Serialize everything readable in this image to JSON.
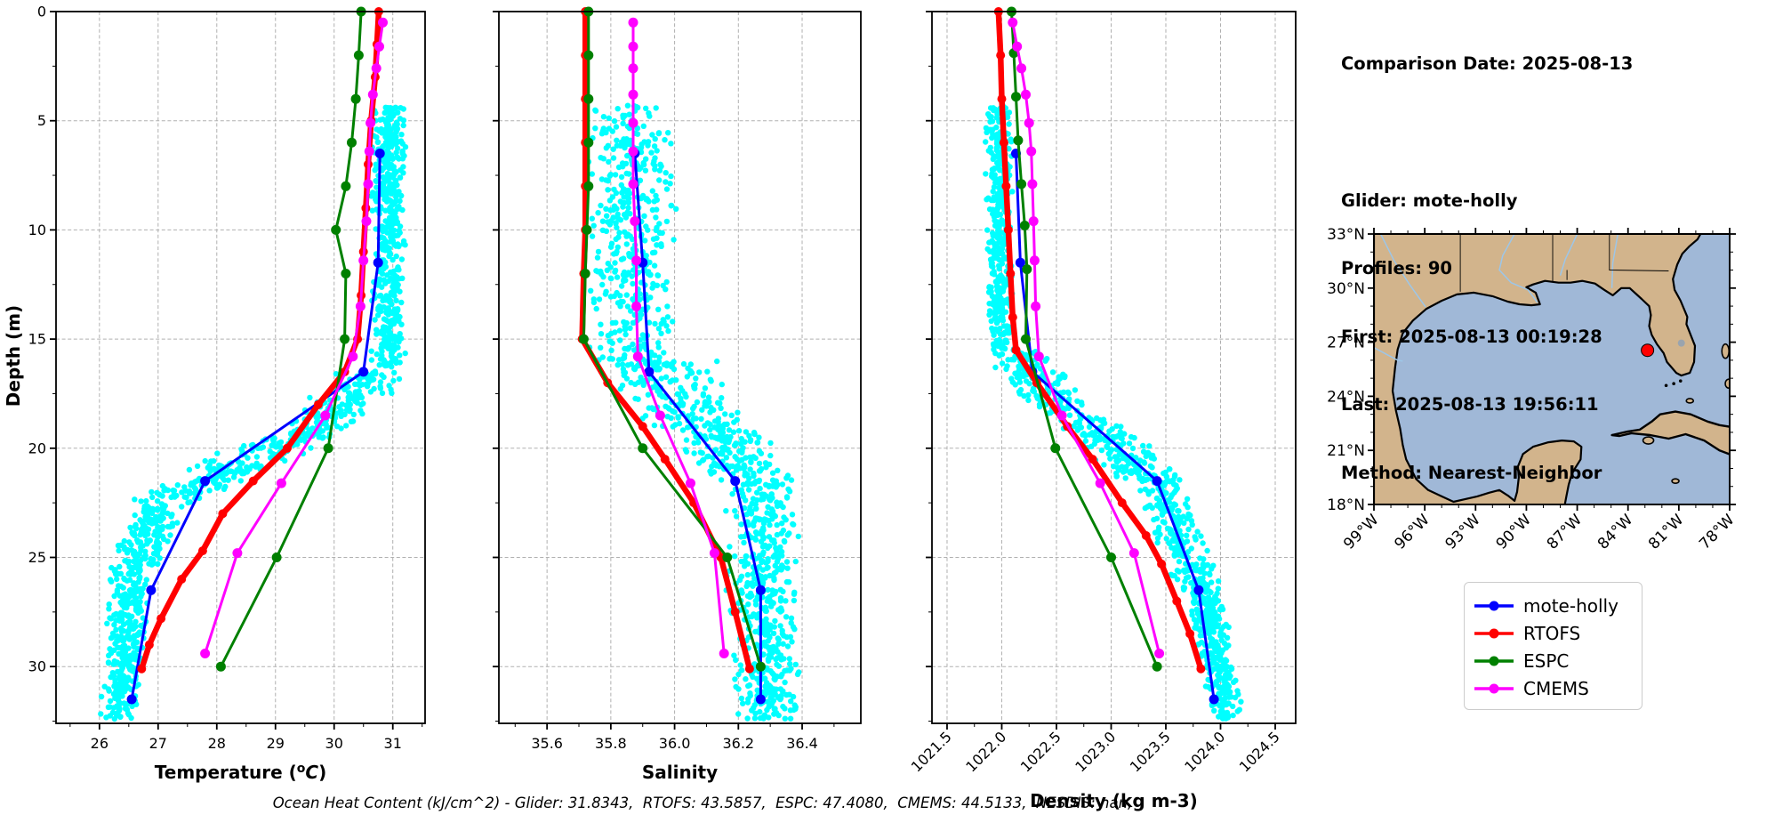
{
  "info_panel": {
    "comparison_date": "Comparison Date: 2025-08-13",
    "lines": [
      "Glider: mote-holly",
      "Profiles: 90",
      "First: 2025-08-13 00:19:28",
      "Last: 2025-08-13 19:56:11",
      "Method: Nearest-Neighbor"
    ]
  },
  "legend": {
    "items": [
      {
        "label": "mote-holly",
        "color": "#0000ff"
      },
      {
        "label": "RTOFS",
        "color": "#ff0000"
      },
      {
        "label": "ESPC",
        "color": "#008000"
      },
      {
        "label": "CMEMS",
        "color": "#ff00ff"
      }
    ]
  },
  "caption": "Ocean Heat Content (kJ/cm^2) - Glider: 31.8343,  RTOFS: 43.5857,  ESPC: 47.4080,  CMEMS: 44.5133,  NESDIS: nan,",
  "map": {
    "land_color": "#d2b48c",
    "ocean_color": "#a0b8d7",
    "lake_color": "#9aa4ae",
    "river_color": "#9dc6e8",
    "lat_ticks": [
      {
        "label": "33°N",
        "value": 33
      },
      {
        "label": "30°N",
        "value": 30
      },
      {
        "label": "27°N",
        "value": 27
      },
      {
        "label": "24°N",
        "value": 24
      },
      {
        "label": "21°N",
        "value": 21
      },
      {
        "label": "18°N",
        "value": 18
      }
    ],
    "lon_ticks": [
      {
        "label": "99°W",
        "value": -99
      },
      {
        "label": "96°W",
        "value": -96
      },
      {
        "label": "93°W",
        "value": -93
      },
      {
        "label": "90°W",
        "value": -90
      },
      {
        "label": "87°W",
        "value": -87
      },
      {
        "label": "84°W",
        "value": -84
      },
      {
        "label": "81°W",
        "value": -81
      },
      {
        "label": "78°W",
        "value": -78
      }
    ],
    "marker": {
      "lat": 26.55,
      "lon": -82.85,
      "color": "#ff0000"
    }
  },
  "chart_data": [
    {
      "id": "temperature",
      "type": "line",
      "xlabel": "Temperature (°C)",
      "ylabel": "Depth (m)",
      "xlim": [
        25.26,
        31.55
      ],
      "ylim": [
        0,
        32.6
      ],
      "xticks": [
        26,
        27,
        28,
        29,
        30,
        31
      ],
      "xtick_labels": [
        "26",
        "27",
        "28",
        "29",
        "30",
        "31"
      ],
      "x_tick_rotation": 0,
      "yticks": [
        0,
        5,
        10,
        15,
        20,
        25,
        30
      ],
      "ytick_labels": [
        "0",
        "5",
        "10",
        "15",
        "20",
        "25",
        "30"
      ],
      "grid": true,
      "cloud": {
        "name": "glider-profiles-scatter",
        "color": "#00ffff",
        "bands": [
          {
            "d0": 4.3,
            "d1": 16.5,
            "x0": 30.95,
            "x1": 30.92,
            "spread": 0.22,
            "n": 480
          },
          {
            "d0": 16.5,
            "d1": 19.5,
            "x0": 30.7,
            "x1": 29.5,
            "spread": 0.5,
            "n": 170
          },
          {
            "d0": 19.5,
            "d1": 22.5,
            "x0": 29.3,
            "x1": 27.1,
            "spread": 0.55,
            "n": 190
          },
          {
            "d0": 22.5,
            "d1": 25.5,
            "x0": 27.0,
            "x1": 26.6,
            "spread": 0.33,
            "n": 170
          },
          {
            "d0": 25.5,
            "d1": 32.4,
            "x0": 26.55,
            "x1": 26.35,
            "spread": 0.27,
            "n": 330
          }
        ]
      },
      "series": [
        {
          "name": "mote-holly",
          "color": "#0000ff",
          "lw": 3,
          "marker": 5.5,
          "points": [
            [
              30.78,
              6.5
            ],
            [
              30.75,
              11.5
            ],
            [
              30.5,
              16.5
            ],
            [
              27.8,
              21.5
            ],
            [
              26.88,
              26.5
            ],
            [
              26.55,
              31.5
            ]
          ]
        },
        {
          "name": "RTOFS",
          "color": "#ff0000",
          "lw": 6.5,
          "marker": 5,
          "points": [
            [
              30.76,
              0
            ],
            [
              30.73,
              1.5
            ],
            [
              30.7,
              3
            ],
            [
              30.63,
              5
            ],
            [
              30.58,
              7
            ],
            [
              30.54,
              9
            ],
            [
              30.5,
              11
            ],
            [
              30.46,
              13
            ],
            [
              30.4,
              15
            ],
            [
              30.18,
              16.5
            ],
            [
              29.73,
              18
            ],
            [
              29.2,
              20
            ],
            [
              28.62,
              21.5
            ],
            [
              28.1,
              23
            ],
            [
              27.76,
              24.7
            ],
            [
              27.4,
              26
            ],
            [
              27.05,
              27.8
            ],
            [
              26.85,
              29
            ],
            [
              26.72,
              30.1
            ]
          ]
        },
        {
          "name": "ESPC",
          "color": "#008000",
          "lw": 3,
          "marker": 5.5,
          "points": [
            [
              30.46,
              0
            ],
            [
              30.42,
              2
            ],
            [
              30.37,
              4
            ],
            [
              30.3,
              6
            ],
            [
              30.2,
              8
            ],
            [
              30.03,
              10
            ],
            [
              30.2,
              12
            ],
            [
              30.18,
              15
            ],
            [
              29.9,
              20
            ],
            [
              29.02,
              25
            ],
            [
              28.07,
              30
            ]
          ]
        },
        {
          "name": "CMEMS",
          "color": "#ff00ff",
          "lw": 3,
          "marker": 5.5,
          "points": [
            [
              30.83,
              0.5
            ],
            [
              30.77,
              1.6
            ],
            [
              30.72,
              2.6
            ],
            [
              30.66,
              3.8
            ],
            [
              30.62,
              5.1
            ],
            [
              30.6,
              6.4
            ],
            [
              30.58,
              7.9
            ],
            [
              30.55,
              9.6
            ],
            [
              30.5,
              11.4
            ],
            [
              30.45,
              13.5
            ],
            [
              30.32,
              15.8
            ],
            [
              29.85,
              18.5
            ],
            [
              29.1,
              21.6
            ],
            [
              28.35,
              24.8
            ],
            [
              27.8,
              29.4
            ]
          ]
        }
      ]
    },
    {
      "id": "salinity",
      "type": "line",
      "xlabel": "Salinity",
      "ylabel": "",
      "xlim": [
        35.449,
        36.584
      ],
      "ylim": [
        0,
        32.6
      ],
      "xticks": [
        35.6,
        35.8,
        36.0,
        36.2,
        36.4
      ],
      "xtick_labels": [
        "35.6",
        "35.8",
        "36.0",
        "36.2",
        "36.4"
      ],
      "x_tick_rotation": 0,
      "yticks": [
        0,
        5,
        10,
        15,
        20,
        25,
        30
      ],
      "ytick_labels": null,
      "grid": true,
      "cloud": {
        "name": "glider-profiles-scatter",
        "color": "#00ffff",
        "bands": [
          {
            "d0": 4.3,
            "d1": 16,
            "x0": 35.86,
            "x1": 35.87,
            "spread": 0.11,
            "n": 420
          },
          {
            "d0": 16,
            "d1": 19,
            "x0": 35.95,
            "x1": 36.08,
            "spread": 0.14,
            "n": 170
          },
          {
            "d0": 19,
            "d1": 21.5,
            "x0": 36.12,
            "x1": 36.24,
            "spread": 0.11,
            "n": 150
          },
          {
            "d0": 21.5,
            "d1": 32.4,
            "x0": 36.27,
            "x1": 36.29,
            "spread": 0.085,
            "n": 500
          }
        ]
      },
      "series": [
        {
          "name": "mote-holly",
          "color": "#0000ff",
          "lw": 3,
          "marker": 5.5,
          "points": [
            [
              35.875,
              6.5
            ],
            [
              35.9,
              11.5
            ],
            [
              35.92,
              16.5
            ],
            [
              36.19,
              21.5
            ],
            [
              36.27,
              26.5
            ],
            [
              36.27,
              31.5
            ]
          ]
        },
        {
          "name": "RTOFS",
          "color": "#ff0000",
          "lw": 6.5,
          "marker": 5,
          "points": [
            [
              35.72,
              0
            ],
            [
              35.72,
              2
            ],
            [
              35.72,
              4
            ],
            [
              35.72,
              6
            ],
            [
              35.72,
              8
            ],
            [
              35.72,
              10
            ],
            [
              35.715,
              12
            ],
            [
              35.71,
              15
            ],
            [
              35.79,
              17
            ],
            [
              35.9,
              19
            ],
            [
              35.97,
              20.5
            ],
            [
              36.06,
              22.5
            ],
            [
              36.145,
              25
            ],
            [
              36.19,
              27.5
            ],
            [
              36.235,
              30.1
            ]
          ]
        },
        {
          "name": "ESPC",
          "color": "#008000",
          "lw": 3,
          "marker": 5.5,
          "points": [
            [
              35.73,
              0
            ],
            [
              35.73,
              2
            ],
            [
              35.73,
              4
            ],
            [
              35.73,
              6
            ],
            [
              35.73,
              8
            ],
            [
              35.725,
              10
            ],
            [
              35.72,
              12
            ],
            [
              35.715,
              15
            ],
            [
              35.9,
              20
            ],
            [
              36.165,
              25
            ],
            [
              36.27,
              30
            ]
          ]
        },
        {
          "name": "CMEMS",
          "color": "#ff00ff",
          "lw": 3,
          "marker": 5.5,
          "points": [
            [
              35.87,
              0.5
            ],
            [
              35.87,
              1.6
            ],
            [
              35.87,
              2.6
            ],
            [
              35.87,
              3.8
            ],
            [
              35.87,
              5.1
            ],
            [
              35.87,
              6.4
            ],
            [
              35.87,
              7.9
            ],
            [
              35.875,
              9.6
            ],
            [
              35.88,
              11.4
            ],
            [
              35.88,
              13.5
            ],
            [
              35.885,
              15.8
            ],
            [
              35.955,
              18.5
            ],
            [
              36.05,
              21.6
            ],
            [
              36.125,
              24.8
            ],
            [
              36.155,
              29.4
            ]
          ]
        }
      ]
    },
    {
      "id": "density",
      "type": "line",
      "xlabel": "Density (kg m-3)",
      "ylabel": "",
      "xlim": [
        1021.362,
        1024.687
      ],
      "ylim": [
        0,
        32.6
      ],
      "xticks": [
        1021.5,
        1022.0,
        1022.5,
        1023.0,
        1023.5,
        1024.0,
        1024.5
      ],
      "xtick_labels": [
        "1021.5",
        "1022.0",
        "1022.5",
        "1023.0",
        "1023.5",
        "1024.0",
        "1024.5"
      ],
      "x_tick_rotation": 45,
      "yticks": [
        0,
        5,
        10,
        15,
        20,
        25,
        30
      ],
      "ytick_labels": null,
      "grid": true,
      "cloud": {
        "name": "glider-profiles-scatter",
        "color": "#00ffff",
        "bands": [
          {
            "d0": 4.3,
            "d1": 15.5,
            "x0": 1021.96,
            "x1": 1022.0,
            "spread": 0.09,
            "n": 400
          },
          {
            "d0": 15.5,
            "d1": 18.5,
            "x0": 1022.1,
            "x1": 1022.6,
            "spread": 0.22,
            "n": 150
          },
          {
            "d0": 18.5,
            "d1": 21.5,
            "x0": 1022.75,
            "x1": 1023.35,
            "spread": 0.25,
            "n": 160
          },
          {
            "d0": 21.5,
            "d1": 26.5,
            "x0": 1023.45,
            "x1": 1023.8,
            "spread": 0.17,
            "n": 220
          },
          {
            "d0": 26.5,
            "d1": 32.4,
            "x0": 1023.85,
            "x1": 1024.05,
            "spread": 0.13,
            "n": 300
          }
        ]
      },
      "series": [
        {
          "name": "mote-holly",
          "color": "#0000ff",
          "lw": 3,
          "marker": 5.5,
          "points": [
            [
              1022.13,
              6.5
            ],
            [
              1022.17,
              11.5
            ],
            [
              1022.28,
              16.5
            ],
            [
              1023.42,
              21.5
            ],
            [
              1023.8,
              26.5
            ],
            [
              1023.94,
              31.5
            ]
          ]
        },
        {
          "name": "RTOFS",
          "color": "#ff0000",
          "lw": 6.5,
          "marker": 5,
          "points": [
            [
              1021.97,
              0
            ],
            [
              1021.99,
              2
            ],
            [
              1022.0,
              4
            ],
            [
              1022.02,
              6
            ],
            [
              1022.04,
              8
            ],
            [
              1022.06,
              10
            ],
            [
              1022.08,
              12
            ],
            [
              1022.1,
              14
            ],
            [
              1022.13,
              15.5
            ],
            [
              1022.32,
              17
            ],
            [
              1022.6,
              19
            ],
            [
              1022.83,
              20.5
            ],
            [
              1023.1,
              22.5
            ],
            [
              1023.32,
              24
            ],
            [
              1023.46,
              25.3
            ],
            [
              1023.6,
              27
            ],
            [
              1023.72,
              28.5
            ],
            [
              1023.82,
              30.1
            ]
          ]
        },
        {
          "name": "ESPC",
          "color": "#008000",
          "lw": 3,
          "marker": 5.5,
          "points": [
            [
              1022.09,
              0
            ],
            [
              1022.11,
              1.9
            ],
            [
              1022.13,
              3.9
            ],
            [
              1022.15,
              5.9
            ],
            [
              1022.18,
              7.9
            ],
            [
              1022.21,
              9.8
            ],
            [
              1022.23,
              11.8
            ],
            [
              1022.22,
              15
            ],
            [
              1022.49,
              20
            ],
            [
              1023.0,
              25
            ],
            [
              1023.42,
              30
            ]
          ]
        },
        {
          "name": "CMEMS",
          "color": "#ff00ff",
          "lw": 3,
          "marker": 5.5,
          "points": [
            [
              1022.1,
              0.5
            ],
            [
              1022.14,
              1.6
            ],
            [
              1022.18,
              2.6
            ],
            [
              1022.22,
              3.8
            ],
            [
              1022.25,
              5.1
            ],
            [
              1022.27,
              6.4
            ],
            [
              1022.28,
              7.9
            ],
            [
              1022.29,
              9.6
            ],
            [
              1022.3,
              11.4
            ],
            [
              1022.31,
              13.5
            ],
            [
              1022.34,
              15.8
            ],
            [
              1022.55,
              18.5
            ],
            [
              1022.9,
              21.6
            ],
            [
              1023.21,
              24.8
            ],
            [
              1023.44,
              29.4
            ]
          ]
        }
      ]
    }
  ]
}
